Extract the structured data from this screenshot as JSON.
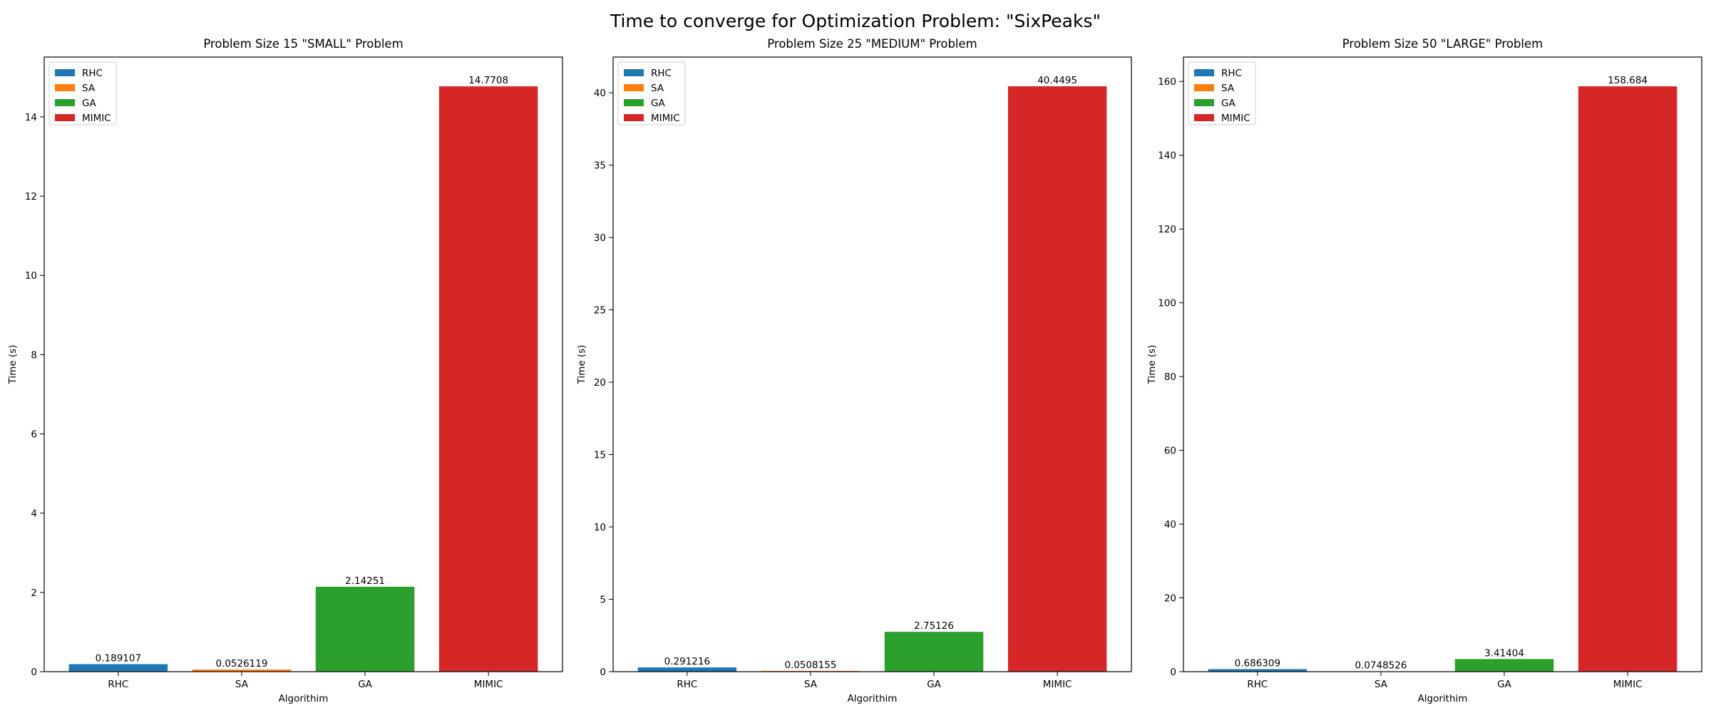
{
  "suptitle": "Time to converge for Optimization Problem: \"SixPeaks\"",
  "colors": {
    "RHC": "#1f77b4",
    "SA": "#ff7f0e",
    "GA": "#2ca02c",
    "MIMIC": "#d62728"
  },
  "chart_data": [
    {
      "type": "bar",
      "title": "Problem Size 15 \"SMALL\" Problem",
      "xlabel": "Algorithim",
      "ylabel": "Time (s)",
      "categories": [
        "RHC",
        "SA",
        "GA",
        "MIMIC"
      ],
      "values": [
        0.189107,
        0.0526119,
        2.14251,
        14.7708
      ],
      "value_labels": [
        "0.189107",
        "0.0526119",
        "2.14251",
        "14.7708"
      ],
      "yticks": [
        0,
        2,
        4,
        6,
        8,
        10,
        12,
        14
      ],
      "ylim": [
        0,
        15.51
      ],
      "legend": [
        "RHC",
        "SA",
        "GA",
        "MIMIC"
      ],
      "legend_loc": "upper left",
      "grid": false
    },
    {
      "type": "bar",
      "title": "Problem Size 25 \"MEDIUM\" Problem",
      "xlabel": "Algorithim",
      "ylabel": "Time (s)",
      "categories": [
        "RHC",
        "SA",
        "GA",
        "MIMIC"
      ],
      "values": [
        0.291216,
        0.0508155,
        2.75126,
        40.4495
      ],
      "value_labels": [
        "0.291216",
        "0.0508155",
        "2.75126",
        "40.4495"
      ],
      "yticks": [
        0,
        5,
        10,
        15,
        20,
        25,
        30,
        35,
        40
      ],
      "ylim": [
        0,
        42.47
      ],
      "legend": [
        "RHC",
        "SA",
        "GA",
        "MIMIC"
      ],
      "legend_loc": "upper left",
      "grid": false
    },
    {
      "type": "bar",
      "title": "Problem Size 50 \"LARGE\" Problem",
      "xlabel": "Algorithim",
      "ylabel": "Time (s)",
      "categories": [
        "RHC",
        "SA",
        "GA",
        "MIMIC"
      ],
      "values": [
        0.686309,
        0.0748526,
        3.41404,
        158.684
      ],
      "value_labels": [
        "0.686309",
        "0.0748526",
        "3.41404",
        "158.684"
      ],
      "yticks": [
        0,
        20,
        40,
        60,
        80,
        100,
        120,
        140,
        160
      ],
      "ylim": [
        0,
        166.62
      ],
      "legend": [
        "RHC",
        "SA",
        "GA",
        "MIMIC"
      ],
      "legend_loc": "upper left",
      "grid": false
    }
  ]
}
